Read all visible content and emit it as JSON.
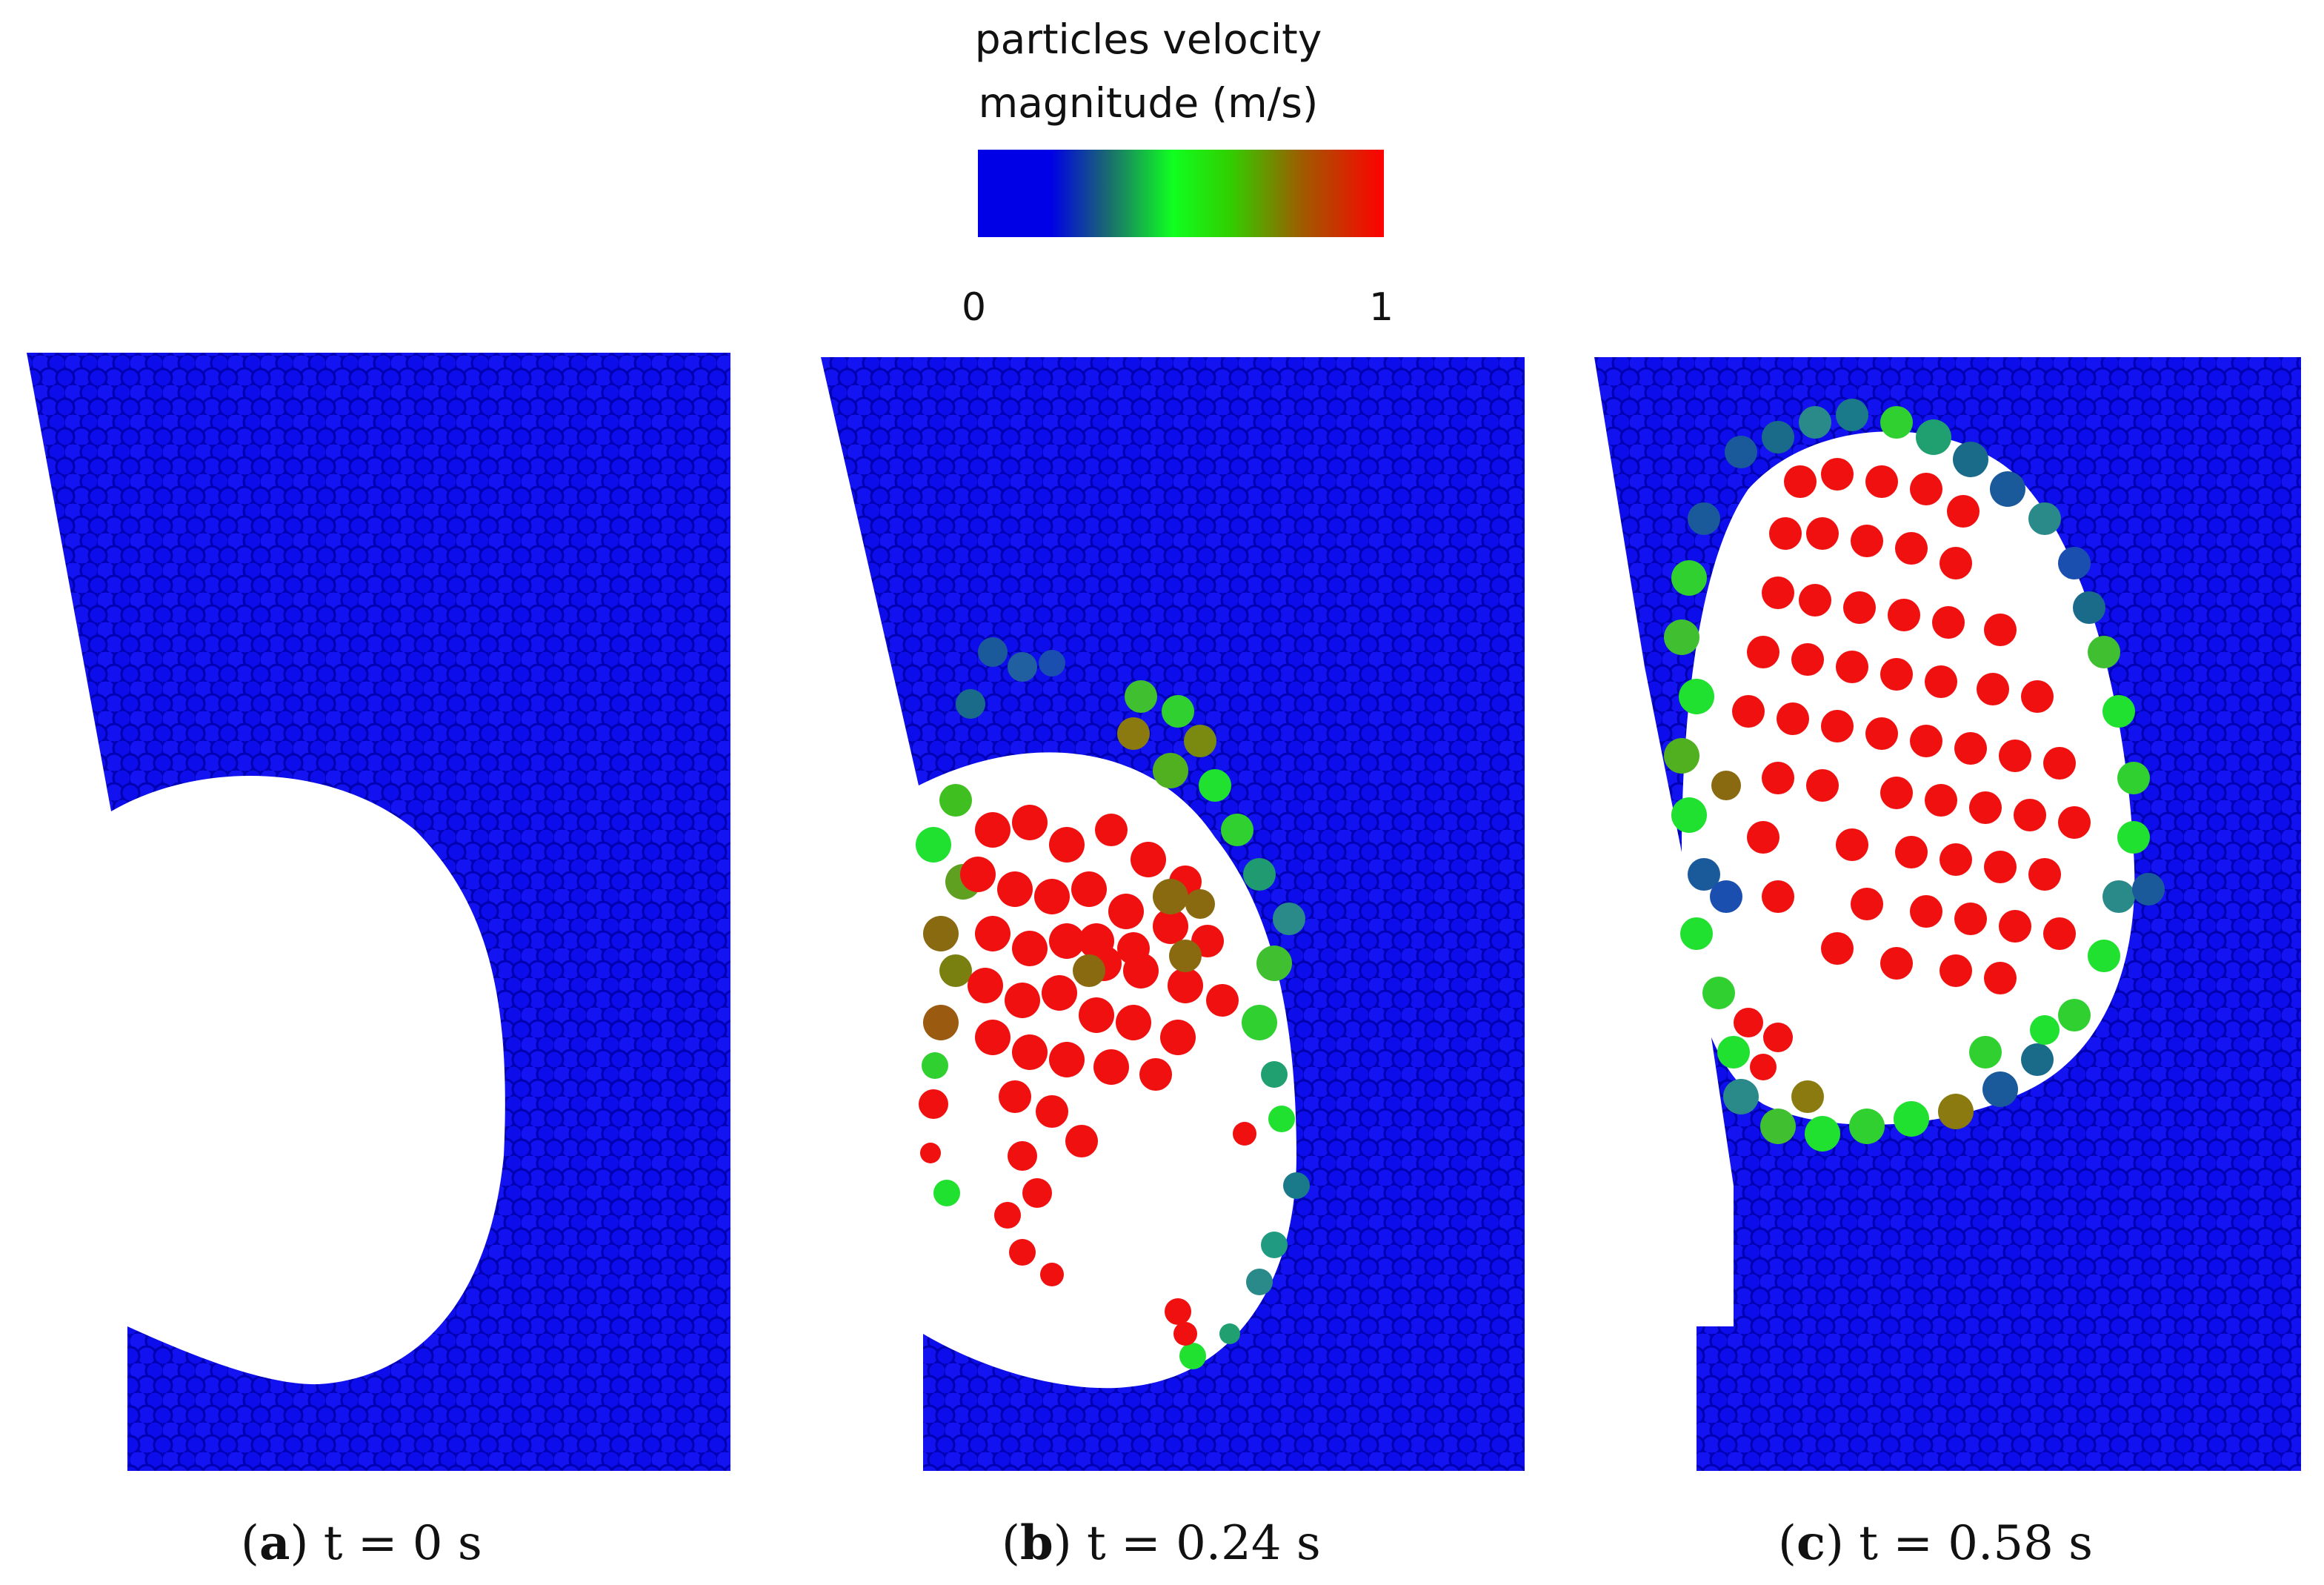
{
  "legend": {
    "title_line1": "particles velocity",
    "title_line2": "magnitude  (m/s)",
    "min_label": "0",
    "max_label": "1",
    "colormap": [
      "#0000e6",
      "#1040a0",
      "#00b400",
      "#00ff10",
      "#40c000",
      "#9a6a00",
      "#ff0000"
    ]
  },
  "panels": [
    {
      "letter": "a",
      "time_text": "t = 0 s"
    },
    {
      "letter": "b",
      "time_text": "t = 0.24 s"
    },
    {
      "letter": "c",
      "time_text": "t = 0.58 s"
    }
  ],
  "colors": {
    "particle_blue": "#0a0ae8",
    "particle_red": "#f01010",
    "particle_green": "#20e020",
    "particle_teal": "#1a7a8a",
    "particle_olive": "#8a7a10"
  }
}
